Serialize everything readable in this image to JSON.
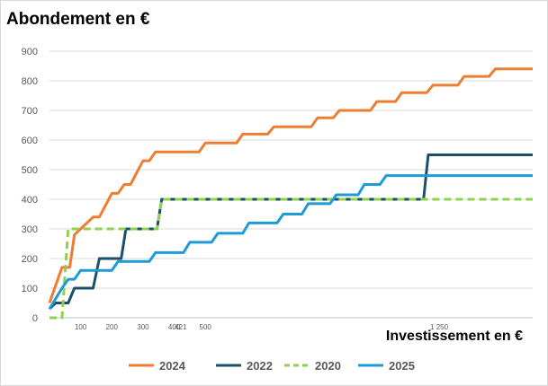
{
  "chart_data": {
    "type": "line",
    "title": "Abondement en €",
    "xlabel": "Investissement en €",
    "ylabel": "",
    "xlim": [
      0,
      1550
    ],
    "ylim": [
      0,
      900
    ],
    "y_ticks": [
      0,
      100,
      200,
      300,
      400,
      500,
      600,
      700,
      800,
      900
    ],
    "x_ticks": [
      {
        "value": 100,
        "label": "100"
      },
      {
        "value": 200,
        "label": "200"
      },
      {
        "value": 300,
        "label": "300"
      },
      {
        "value": 400,
        "label": "400"
      },
      {
        "value": 421,
        "label": "421"
      },
      {
        "value": 500,
        "label": "500"
      },
      {
        "value": 1250,
        "label": "1 250"
      }
    ],
    "grid": "horizontal",
    "legend": "bottom",
    "series": [
      {
        "name": "2024",
        "color": "#ED7D31",
        "dash": false,
        "points": [
          [
            0,
            50
          ],
          [
            40,
            170
          ],
          [
            65,
            170
          ],
          [
            80,
            280
          ],
          [
            100,
            300
          ],
          [
            140,
            340
          ],
          [
            160,
            340
          ],
          [
            200,
            420
          ],
          [
            220,
            420
          ],
          [
            240,
            450
          ],
          [
            260,
            450
          ],
          [
            300,
            530
          ],
          [
            320,
            530
          ],
          [
            340,
            560
          ],
          [
            480,
            560
          ],
          [
            500,
            590
          ],
          [
            600,
            590
          ],
          [
            620,
            620
          ],
          [
            700,
            620
          ],
          [
            720,
            645
          ],
          [
            840,
            645
          ],
          [
            860,
            675
          ],
          [
            910,
            675
          ],
          [
            930,
            700
          ],
          [
            1030,
            700
          ],
          [
            1050,
            730
          ],
          [
            1110,
            730
          ],
          [
            1130,
            760
          ],
          [
            1210,
            760
          ],
          [
            1230,
            785
          ],
          [
            1310,
            785
          ],
          [
            1330,
            815
          ],
          [
            1410,
            815
          ],
          [
            1430,
            840
          ],
          [
            1550,
            840
          ]
        ]
      },
      {
        "name": "2022",
        "color": "#1B4F6A",
        "dash": false,
        "points": [
          [
            0,
            30
          ],
          [
            20,
            50
          ],
          [
            60,
            50
          ],
          [
            80,
            100
          ],
          [
            140,
            100
          ],
          [
            160,
            200
          ],
          [
            230,
            200
          ],
          [
            245,
            300
          ],
          [
            345,
            300
          ],
          [
            360,
            400
          ],
          [
            1200,
            400
          ],
          [
            1215,
            550
          ],
          [
            1550,
            550
          ]
        ]
      },
      {
        "name": "2020",
        "color": "#92D050",
        "dash": true,
        "points": [
          [
            0,
            0
          ],
          [
            40,
            0
          ],
          [
            60,
            300
          ],
          [
            345,
            300
          ],
          [
            360,
            400
          ],
          [
            1550,
            400
          ]
        ]
      },
      {
        "name": "2025",
        "color": "#1E9AD6",
        "dash": false,
        "points": [
          [
            0,
            30
          ],
          [
            40,
            100
          ],
          [
            60,
            130
          ],
          [
            80,
            130
          ],
          [
            100,
            160
          ],
          [
            140,
            160
          ],
          [
            160,
            160
          ],
          [
            200,
            160
          ],
          [
            220,
            190
          ],
          [
            320,
            190
          ],
          [
            340,
            220
          ],
          [
            430,
            220
          ],
          [
            450,
            255
          ],
          [
            520,
            255
          ],
          [
            540,
            285
          ],
          [
            620,
            285
          ],
          [
            640,
            320
          ],
          [
            730,
            320
          ],
          [
            750,
            350
          ],
          [
            810,
            350
          ],
          [
            830,
            385
          ],
          [
            900,
            385
          ],
          [
            920,
            415
          ],
          [
            990,
            415
          ],
          [
            1010,
            450
          ],
          [
            1060,
            450
          ],
          [
            1080,
            480
          ],
          [
            1550,
            480
          ]
        ]
      }
    ]
  }
}
